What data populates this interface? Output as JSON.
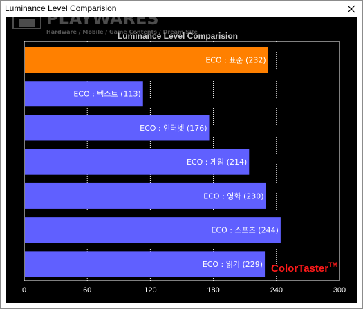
{
  "window": {
    "title": "Luminance Level Comparision"
  },
  "watermark": {
    "brand": "PLAYWARES",
    "tagline": "Hardware / Mobile / Game Contents / Dream Site"
  },
  "credit": {
    "text": "ColorTaster",
    "mark": "TM"
  },
  "colors": {
    "highlight_bar": "#ff8000",
    "bar": "#6060ff",
    "background": "#000000",
    "credit": "#ff1a1a"
  },
  "chart_data": {
    "type": "bar",
    "orientation": "horizontal",
    "title": "Luminance Level Comparision",
    "categories": [
      "ECO : 표준",
      "ECO : 텍스트",
      "ECO : 인터넷",
      "ECO : 게임",
      "ECO : 영화",
      "ECO : 스포츠",
      "ECO : 읽기"
    ],
    "values": [
      232,
      113,
      176,
      214,
      230,
      244,
      229
    ],
    "bar_labels": [
      "ECO : 표준 (232)",
      "ECO : 텍스트 (113)",
      "ECO : 인터넷 (176)",
      "ECO : 게임 (214)",
      "ECO : 영화 (230)",
      "ECO : 스포츠 (244)",
      "ECO : 읽기 (229)"
    ],
    "highlight_index": 0,
    "xlim": [
      0,
      300
    ],
    "xticks": [
      0,
      60,
      120,
      180,
      240,
      300
    ],
    "grid": "vertical dotted",
    "xlabel": "",
    "ylabel": ""
  }
}
